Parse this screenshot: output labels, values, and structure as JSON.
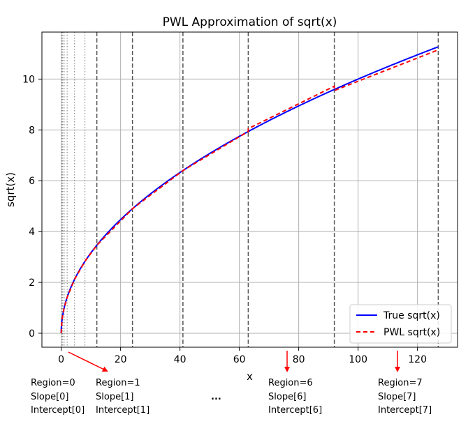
{
  "chart_data": {
    "type": "line",
    "title": "PWL Approximation of sqrt(x)",
    "xlabel": "x",
    "ylabel": "sqrt(x)",
    "xlim": [
      -6.5,
      133.5
    ],
    "ylim": [
      -0.55,
      11.85
    ],
    "xticks": [
      0,
      20,
      40,
      60,
      80,
      100,
      120
    ],
    "yticks": [
      0,
      2,
      4,
      6,
      8,
      10
    ],
    "grid": true,
    "legend_position": "lower-right",
    "region_boundaries_dashed": [
      12,
      24,
      41,
      63,
      92,
      127
    ],
    "region_boundaries_dotted": [
      0.25,
      0.5,
      1,
      2,
      4.5,
      8
    ],
    "series": [
      {
        "name": "True sqrt(x)",
        "style": "solid",
        "color": "#0000ff",
        "function": "sqrt",
        "x_range": [
          0,
          127
        ]
      },
      {
        "name": "PWL sqrt(x)",
        "style": "dashed",
        "color": "#ff0000",
        "points": [
          {
            "x": 0,
            "y": 0
          },
          {
            "x": 0.25,
            "y": 0.5
          },
          {
            "x": 0.5,
            "y": 0.71
          },
          {
            "x": 1,
            "y": 1
          },
          {
            "x": 2,
            "y": 1.41
          },
          {
            "x": 4.5,
            "y": 2.12
          },
          {
            "x": 8,
            "y": 2.83
          },
          {
            "x": 12,
            "y": 3.46
          },
          {
            "x": 24,
            "y": 4.9
          },
          {
            "x": 41,
            "y": 6.4
          },
          {
            "x": 63,
            "y": 7.94
          },
          {
            "x": 63.01,
            "y": 8.05
          },
          {
            "x": 92,
            "y": 9.72
          },
          {
            "x": 92.01,
            "y": 9.55
          },
          {
            "x": 127,
            "y": 11.15
          }
        ]
      }
    ]
  },
  "annotations": {
    "region0": {
      "line1": "Region=0",
      "line2": "Slope[0]",
      "line3": "Intercept[0]"
    },
    "region1": {
      "line1": "Region=1",
      "line2": "Slope[1]",
      "line3": "Intercept[1]"
    },
    "ellipsis": "...",
    "region6": {
      "line1": "Region=6",
      "line2": "Slope[6]",
      "line3": "Intercept[6]"
    },
    "region7": {
      "line1": "Region=7",
      "line2": "Slope[7]",
      "line3": "Intercept[7]"
    }
  },
  "colors": {
    "true_line": "#0000ff",
    "pwl_line": "#ff0000",
    "grid": "#b0b0b0",
    "arrow": "#ff0000"
  }
}
